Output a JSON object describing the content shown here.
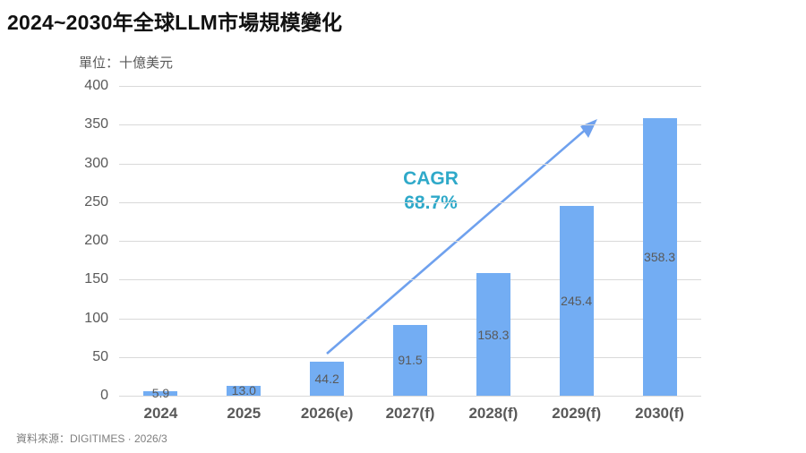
{
  "title": "2024~2030年全球LLM市場規模變化",
  "unit_label": "單位：十億美元",
  "source": "資料來源：DIGITIMES · 2026/3",
  "annotation": {
    "line1": "CAGR",
    "line2": "68.7%",
    "color": "#2fa9c9"
  },
  "chart_data": {
    "type": "bar",
    "title": "2024~2030年全球LLM市場規模變化",
    "unit": "十億美元",
    "categories": [
      "2024",
      "2025",
      "2026(e)",
      "2027(f)",
      "2028(f)",
      "2029(f)",
      "2030(f)"
    ],
    "values": [
      5.9,
      13.0,
      44.2,
      91.5,
      158.3,
      245.4,
      358.3
    ],
    "value_label_decimals": 1,
    "ylim": [
      0,
      400
    ],
    "ytick_step": 50,
    "grid": true,
    "legend": "none",
    "bar_color": "#73adf3",
    "grid_color": "#d9d9d9",
    "axis_label_color": "#595959",
    "arrow_color": "#6fa1ee",
    "annotation_text": "CAGR 68.7%",
    "annotation_arrow": {
      "from_category": "2026(e)",
      "to_category": "2030(f)"
    }
  }
}
